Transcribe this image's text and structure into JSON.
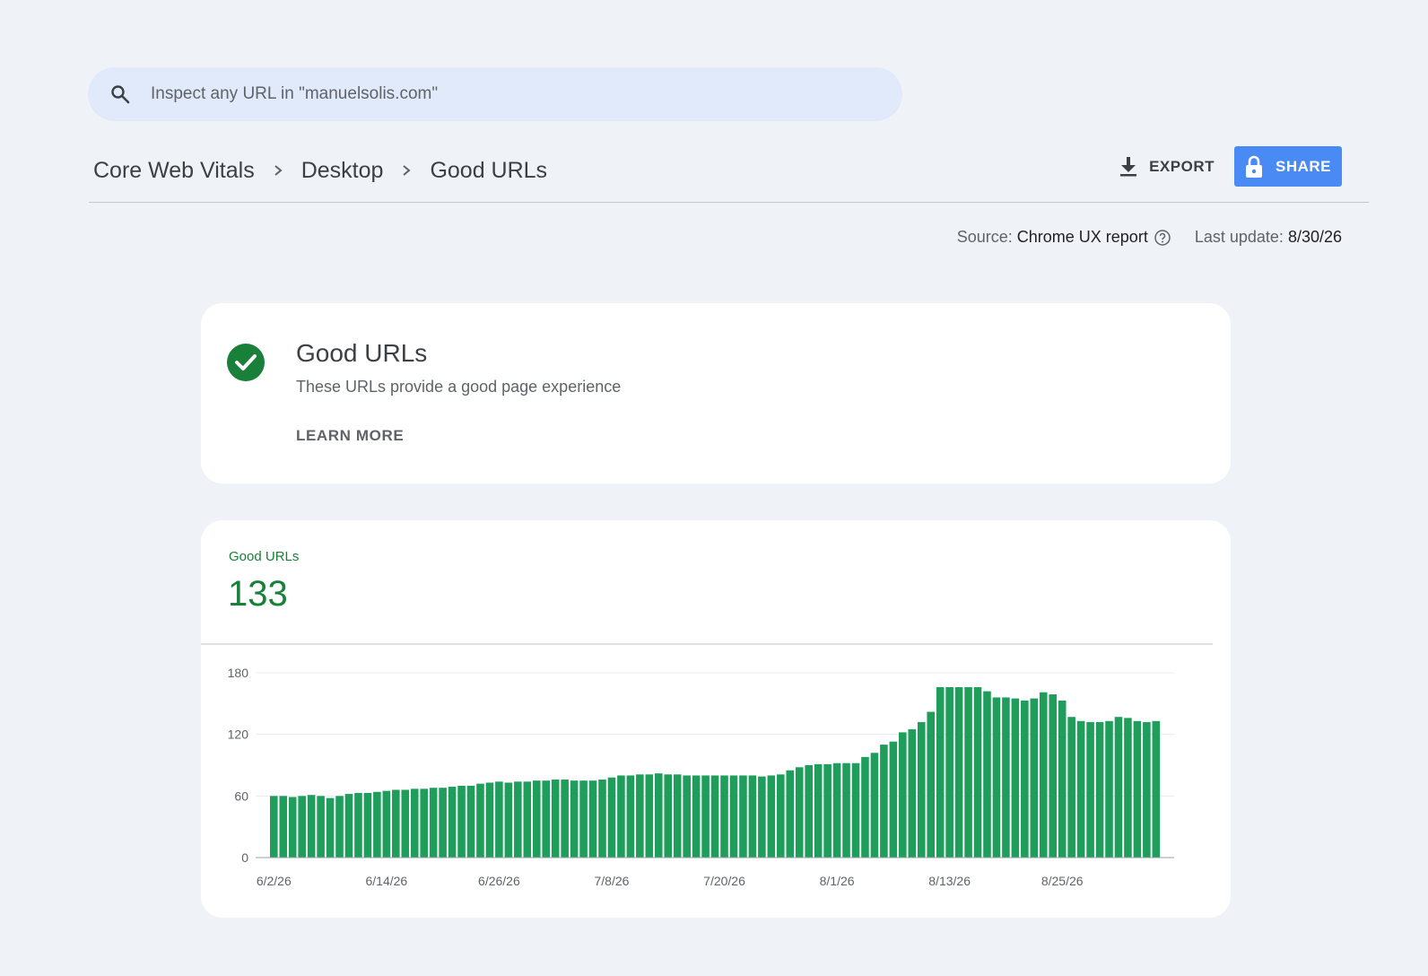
{
  "search": {
    "placeholder": "Inspect any URL in \"manuelsolis.com\""
  },
  "breadcrumb": {
    "items": [
      "Core Web Vitals",
      "Desktop",
      "Good URLs"
    ]
  },
  "actions": {
    "export_label": "EXPORT",
    "share_label": "SHARE",
    "share_color": "#4a8af4"
  },
  "meta": {
    "source_label": "Source:",
    "source_value": "Chrome UX report",
    "update_label": "Last update:",
    "update_value": "8/30/26"
  },
  "status_card": {
    "title": "Good URLs",
    "subtitle": "These URLs provide a good page experience",
    "learn_more": "LEARN MORE",
    "status_color": "#188038"
  },
  "metric": {
    "label": "Good URLs",
    "value": "133",
    "color": "#188038"
  },
  "chart_data": {
    "type": "bar",
    "title": "",
    "xlabel": "",
    "ylabel": "",
    "ylim": [
      0,
      180
    ],
    "yticks": [
      "0",
      "60",
      "120",
      "180"
    ],
    "xtick_labels": [
      "6/2/26",
      "6/14/26",
      "6/26/26",
      "7/8/26",
      "7/20/26",
      "8/1/26",
      "8/13/26",
      "8/25/26"
    ],
    "xtick_indices": [
      0,
      12,
      24,
      36,
      48,
      60,
      72,
      84
    ],
    "grid": true,
    "bar_color": "#1e9e5a",
    "series": [
      {
        "values": [
          60,
          60,
          59,
          60,
          61,
          60,
          58,
          60,
          62,
          63,
          63,
          64,
          65,
          66,
          66,
          67,
          67,
          68,
          68,
          69,
          70,
          70,
          72,
          73,
          74,
          73,
          74,
          74,
          75,
          75,
          76,
          76,
          75,
          75,
          75,
          76,
          78,
          80,
          80,
          81,
          81,
          82,
          81,
          81,
          80,
          80,
          80,
          80,
          80,
          80,
          80,
          80,
          79,
          80,
          81,
          85,
          88,
          90,
          91,
          91,
          92,
          92,
          92,
          98,
          102,
          110,
          113,
          122,
          125,
          132,
          142,
          166,
          166,
          166,
          166,
          166,
          162,
          156,
          156,
          155,
          153,
          155,
          161,
          159,
          153,
          137,
          133,
          132,
          132,
          133,
          137,
          136,
          133,
          132,
          133
        ]
      }
    ]
  }
}
